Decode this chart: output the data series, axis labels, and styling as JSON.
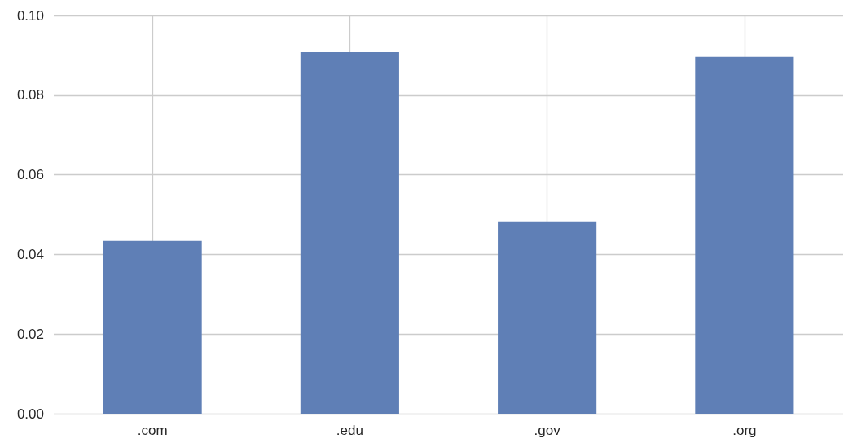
{
  "chart_data": {
    "type": "bar",
    "categories": [
      ".com",
      ".edu",
      ".gov",
      ".org"
    ],
    "values": [
      0.0434,
      0.0908,
      0.0483,
      0.0896
    ],
    "color": "#5f7fb6",
    "ylim": [
      0,
      0.1
    ],
    "yticks": [
      {
        "value": 0,
        "label": "0.00"
      },
      0.02,
      0.04,
      0.06,
      0.08,
      {
        "value": 0.1,
        "label": "0.10"
      }
    ],
    "grid": true
  }
}
